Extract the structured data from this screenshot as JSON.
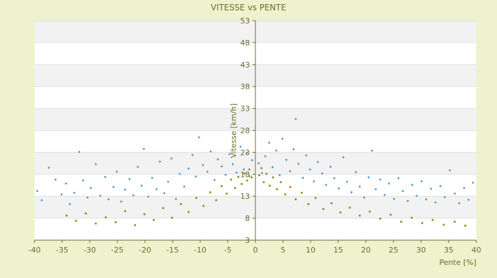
{
  "chart_data": {
    "type": "scatter",
    "title": "VITESSE vs PENTE",
    "xlabel": "Pente [%]",
    "ylabel": "Vitesse [km/h]",
    "xlim": [
      -40,
      40
    ],
    "ylim": [
      3,
      53
    ],
    "x_ticks": [
      -40,
      -35,
      -30,
      -25,
      -20,
      -15,
      -10,
      -5,
      0,
      5,
      10,
      15,
      20,
      25,
      30,
      35,
      40
    ],
    "y_ticks": [
      3,
      8,
      13,
      18,
      23,
      28,
      33,
      38,
      43,
      48,
      53
    ],
    "grid": "horizontal alternating bands",
    "colors": {
      "background": "#eef2cd",
      "plot_band_light": "#ffffff",
      "plot_band_dark": "#f2f2f2",
      "axis": "#6b6b2e",
      "text": "#6b6b2e",
      "series_blue": "#3a8fd8",
      "series_olive": "#8e8e1c"
    },
    "series": [
      {
        "color": "#3a8fd8",
        "points": [
          [
            -39.5,
            14.2
          ],
          [
            -38.7,
            12.1
          ],
          [
            -37.4,
            19.5
          ],
          [
            -36.2,
            16.8
          ],
          [
            -35.1,
            13.4
          ],
          [
            -34.3,
            15.9
          ],
          [
            -33.6,
            11.2
          ],
          [
            -32.8,
            13.8
          ],
          [
            -31.9,
            23.1
          ],
          [
            -31.2,
            16.6
          ],
          [
            -30.4,
            12.7
          ],
          [
            -29.8,
            14.9
          ],
          [
            -28.9,
            20.3
          ],
          [
            -28.1,
            13.1
          ],
          [
            -27.2,
            17.4
          ],
          [
            -26.6,
            12.3
          ],
          [
            -25.7,
            15.1
          ],
          [
            -25.1,
            18.6
          ],
          [
            -24.3,
            11.8
          ],
          [
            -23.6,
            14.5
          ],
          [
            -22.8,
            16.9
          ],
          [
            -22.1,
            13.2
          ],
          [
            -21.3,
            19.7
          ],
          [
            -20.6,
            15.4
          ],
          [
            -20.2,
            23.8
          ],
          [
            -19.4,
            12.9
          ],
          [
            -18.7,
            17.2
          ],
          [
            -17.9,
            14.6
          ],
          [
            -17.3,
            20.9
          ],
          [
            -16.5,
            13.7
          ],
          [
            -15.8,
            16.3
          ],
          [
            -15.2,
            21.6
          ],
          [
            -14.4,
            12.4
          ],
          [
            -13.7,
            18.1
          ],
          [
            -12.9,
            15.2
          ],
          [
            -12.1,
            19.3
          ],
          [
            -11.4,
            22.4
          ],
          [
            -10.8,
            17.5
          ],
          [
            -10.2,
            26.4
          ],
          [
            -9.5,
            20.1
          ],
          [
            -8.7,
            18.6
          ],
          [
            -8.1,
            23.2
          ],
          [
            -7.4,
            16.7
          ],
          [
            -6.8,
            21.4
          ],
          [
            -6.1,
            19.8
          ],
          [
            -5.4,
            17.9
          ],
          [
            -4.7,
            22.6
          ],
          [
            -4.1,
            20.3
          ],
          [
            -3.4,
            18.4
          ],
          [
            -2.7,
            24.3
          ],
          [
            -2.1,
            19.1
          ],
          [
            -1.6,
            22.8
          ],
          [
            -1.1,
            17.6
          ],
          [
            -0.6,
            21.2
          ],
          [
            0.6,
            20.5
          ],
          [
            1.2,
            18.3
          ],
          [
            1.8,
            22.1
          ],
          [
            2.5,
            25.2
          ],
          [
            3.1,
            19.6
          ],
          [
            3.8,
            23.4
          ],
          [
            4.4,
            17.8
          ],
          [
            4.9,
            26.1
          ],
          [
            5.6,
            21.3
          ],
          [
            6.3,
            18.7
          ],
          [
            6.9,
            23.7
          ],
          [
            7.3,
            30.6
          ],
          [
            7.8,
            20.4
          ],
          [
            8.6,
            17.2
          ],
          [
            9.2,
            22.3
          ],
          [
            9.9,
            19.1
          ],
          [
            10.6,
            16.4
          ],
          [
            11.3,
            20.8
          ],
          [
            12.1,
            18.2
          ],
          [
            12.8,
            15.6
          ],
          [
            13.6,
            19.7
          ],
          [
            14.3,
            17.1
          ],
          [
            15.1,
            14.8
          ],
          [
            15.9,
            21.9
          ],
          [
            16.6,
            16.3
          ],
          [
            17.4,
            13.9
          ],
          [
            18.2,
            18.5
          ],
          [
            18.9,
            15.2
          ],
          [
            19.7,
            12.7
          ],
          [
            20.5,
            17.3
          ],
          [
            21.1,
            23.4
          ],
          [
            21.8,
            14.6
          ],
          [
            22.6,
            16.8
          ],
          [
            23.4,
            13.3
          ],
          [
            24.2,
            15.9
          ],
          [
            25.1,
            12.4
          ],
          [
            25.9,
            17.1
          ],
          [
            26.7,
            14.2
          ],
          [
            27.6,
            11.9
          ],
          [
            28.4,
            15.6
          ],
          [
            29.2,
            13.1
          ],
          [
            30.1,
            16.4
          ],
          [
            30.9,
            12.3
          ],
          [
            31.8,
            14.7
          ],
          [
            32.6,
            11.6
          ],
          [
            33.5,
            15.3
          ],
          [
            34.3,
            12.8
          ],
          [
            35.2,
            18.9
          ],
          [
            36.1,
            13.6
          ],
          [
            36.9,
            11.4
          ],
          [
            37.8,
            14.9
          ],
          [
            38.6,
            12.2
          ],
          [
            39.4,
            16.1
          ]
        ]
      },
      {
        "color": "#8e8e1c",
        "points": [
          [
            -34.2,
            8.6
          ],
          [
            -32.5,
            7.4
          ],
          [
            -30.7,
            9.1
          ],
          [
            -28.9,
            6.8
          ],
          [
            -27.1,
            8.2
          ],
          [
            -25.3,
            7.1
          ],
          [
            -23.6,
            9.6
          ],
          [
            -21.8,
            6.4
          ],
          [
            -20.1,
            8.9
          ],
          [
            -18.4,
            7.6
          ],
          [
            -16.7,
            10.3
          ],
          [
            -15.1,
            8.1
          ],
          [
            -13.5,
            11.2
          ],
          [
            -12.1,
            9.4
          ],
          [
            -10.7,
            12.6
          ],
          [
            -9.4,
            10.8
          ],
          [
            -8.2,
            13.9
          ],
          [
            -7.1,
            12.1
          ],
          [
            -6.1,
            15.3
          ],
          [
            -5.2,
            13.6
          ],
          [
            -4.4,
            16.8
          ],
          [
            -3.7,
            14.9
          ],
          [
            -3.1,
            17.4
          ],
          [
            -2.5,
            15.8
          ],
          [
            -2.0,
            18.2
          ],
          [
            -1.5,
            16.6
          ],
          [
            -1.1,
            19.1
          ],
          [
            -0.7,
            17.3
          ],
          [
            0.7,
            17.8
          ],
          [
            1.1,
            19.4
          ],
          [
            1.5,
            16.2
          ],
          [
            2.0,
            18.1
          ],
          [
            2.6,
            15.4
          ],
          [
            3.2,
            17.3
          ],
          [
            3.9,
            14.6
          ],
          [
            4.6,
            16.2
          ],
          [
            5.4,
            13.4
          ],
          [
            6.3,
            15.1
          ],
          [
            7.3,
            12.3
          ],
          [
            8.4,
            13.8
          ],
          [
            9.6,
            11.2
          ],
          [
            10.9,
            12.6
          ],
          [
            12.3,
            10.1
          ],
          [
            13.8,
            11.4
          ],
          [
            15.4,
            9.3
          ],
          [
            17.1,
            10.4
          ],
          [
            18.9,
            8.6
          ],
          [
            20.7,
            9.5
          ],
          [
            22.6,
            7.9
          ],
          [
            24.5,
            8.8
          ],
          [
            26.4,
            7.2
          ],
          [
            28.3,
            8.1
          ],
          [
            30.2,
            6.9
          ],
          [
            32.1,
            7.6
          ],
          [
            34.1,
            6.5
          ],
          [
            36.1,
            7.2
          ],
          [
            38.0,
            6.3
          ]
        ]
      }
    ]
  }
}
